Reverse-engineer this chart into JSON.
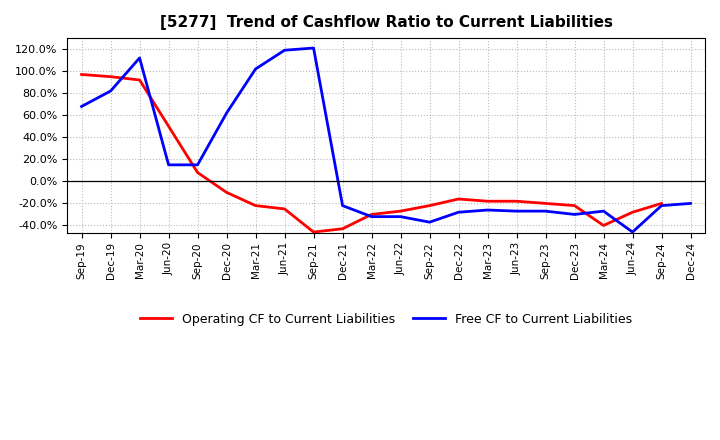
{
  "title": "[5277]  Trend of Cashflow Ratio to Current Liabilities",
  "x_labels": [
    "Sep-19",
    "Dec-19",
    "Mar-20",
    "Jun-20",
    "Sep-20",
    "Dec-20",
    "Mar-21",
    "Jun-21",
    "Sep-21",
    "Dec-21",
    "Mar-22",
    "Jun-22",
    "Sep-22",
    "Dec-22",
    "Mar-23",
    "Jun-23",
    "Sep-23",
    "Dec-23",
    "Mar-24",
    "Jun-24",
    "Sep-24",
    "Dec-24"
  ],
  "operating_cf": [
    0.97,
    0.95,
    0.92,
    0.5,
    0.08,
    -0.1,
    -0.22,
    -0.25,
    -0.46,
    -0.43,
    -0.3,
    -0.27,
    -0.22,
    -0.16,
    -0.18,
    -0.18,
    -0.2,
    -0.22,
    -0.4,
    -0.28,
    -0.2,
    null
  ],
  "free_cf": [
    0.68,
    0.82,
    1.12,
    0.15,
    0.15,
    0.62,
    1.02,
    1.19,
    1.21,
    -0.22,
    -0.32,
    -0.32,
    -0.37,
    -0.28,
    -0.26,
    -0.27,
    -0.27,
    -0.3,
    -0.27,
    -0.46,
    -0.22,
    -0.2
  ],
  "operating_color": "#ff0000",
  "free_color": "#0000ff",
  "background_color": "#ffffff",
  "grid_color": "#bbbbbb",
  "yticks": [
    -0.4,
    -0.2,
    0.0,
    0.2,
    0.4,
    0.6,
    0.8,
    1.0,
    1.2
  ],
  "ylim": [
    -0.47,
    1.3
  ],
  "legend_operating": "Operating CF to Current Liabilities",
  "legend_free": "Free CF to Current Liabilities"
}
